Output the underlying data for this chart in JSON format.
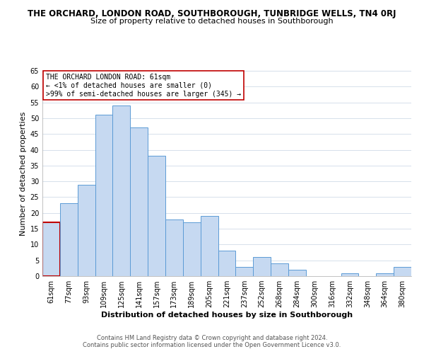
{
  "title": "THE ORCHARD, LONDON ROAD, SOUTHBOROUGH, TUNBRIDGE WELLS, TN4 0RJ",
  "subtitle": "Size of property relative to detached houses in Southborough",
  "xlabel": "Distribution of detached houses by size in Southborough",
  "ylabel": "Number of detached properties",
  "bar_labels": [
    "61sqm",
    "77sqm",
    "93sqm",
    "109sqm",
    "125sqm",
    "141sqm",
    "157sqm",
    "173sqm",
    "189sqm",
    "205sqm",
    "221sqm",
    "237sqm",
    "252sqm",
    "268sqm",
    "284sqm",
    "300sqm",
    "316sqm",
    "332sqm",
    "348sqm",
    "364sqm",
    "380sqm"
  ],
  "bar_values": [
    17,
    23,
    29,
    51,
    54,
    47,
    38,
    18,
    17,
    19,
    8,
    3,
    6,
    4,
    2,
    0,
    0,
    1,
    0,
    1,
    3
  ],
  "bar_color": "#c6d9f1",
  "bar_edge_color": "#5b9bd5",
  "highlight_index": 0,
  "highlight_color": "#c00000",
  "annotation_title": "THE ORCHARD LONDON ROAD: 61sqm",
  "annotation_line1": "← <1% of detached houses are smaller (0)",
  "annotation_line2": ">99% of semi-detached houses are larger (345) →",
  "ylim": [
    0,
    65
  ],
  "yticks": [
    0,
    5,
    10,
    15,
    20,
    25,
    30,
    35,
    40,
    45,
    50,
    55,
    60,
    65
  ],
  "footer_line1": "Contains HM Land Registry data © Crown copyright and database right 2024.",
  "footer_line2": "Contains public sector information licensed under the Open Government Licence v3.0.",
  "bg_color": "#ffffff",
  "grid_color": "#d0dbe8",
  "title_fontsize": 8.5,
  "subtitle_fontsize": 8.0,
  "axis_label_fontsize": 8.0,
  "tick_fontsize": 7.0,
  "annotation_fontsize": 7.0,
  "footer_fontsize": 6.0
}
